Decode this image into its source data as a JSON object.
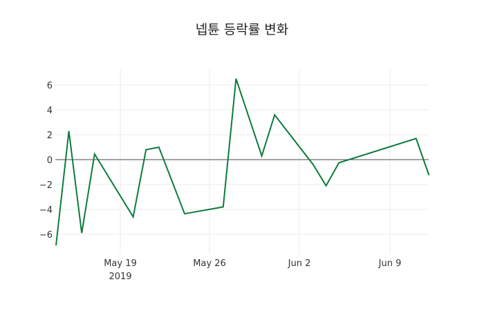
{
  "chart_data": {
    "type": "line",
    "title": "넵튠 등락률 변화",
    "xlabel": "",
    "ylabel": "",
    "x": [
      "2019-05-14",
      "2019-05-15",
      "2019-05-16",
      "2019-05-17",
      "2019-05-20",
      "2019-05-21",
      "2019-05-22",
      "2019-05-24",
      "2019-05-27",
      "2019-05-28",
      "2019-05-30",
      "2019-05-31",
      "2019-06-03",
      "2019-06-04",
      "2019-06-05",
      "2019-06-11",
      "2019-06-12"
    ],
    "series": [
      {
        "name": "등락률",
        "color": "#0b7a3e",
        "values": [
          -6.9,
          2.3,
          -5.9,
          0.45,
          -4.6,
          0.8,
          1.0,
          -4.35,
          -3.8,
          6.5,
          0.3,
          3.6,
          -0.4,
          -2.1,
          -0.25,
          1.7,
          -1.25
        ]
      }
    ],
    "yticks": [
      -6,
      -4,
      -2,
      0,
      2,
      4,
      6
    ],
    "xticks": [
      "May 19\n2019",
      "May 26",
      "Jun 2",
      "Jun 9"
    ],
    "ylim": [
      -7.2,
      7.2
    ],
    "grid": true,
    "zeroline": true
  }
}
